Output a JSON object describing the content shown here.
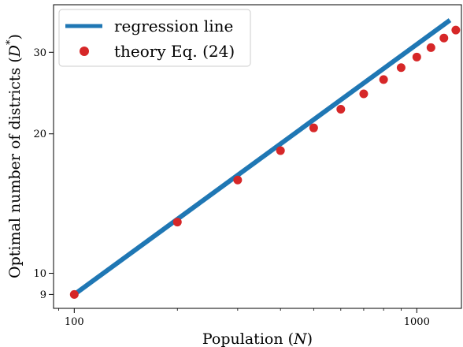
{
  "chart_data": {
    "type": "line",
    "xscale": "log",
    "yscale": "log",
    "xlabel": "Population (N)",
    "xlabel_parts": [
      "Population (",
      "N",
      ")"
    ],
    "ylabel": "Optimal number of districts (D*)",
    "ylabel_parts": [
      "Optimal number of districts (",
      "D",
      "*",
      ")"
    ],
    "xlim": [
      87,
      1350
    ],
    "ylim": [
      8.4,
      38
    ],
    "xticks": [
      {
        "value": 100,
        "label": "100"
      },
      {
        "value": 1000,
        "label": "1000"
      }
    ],
    "yticks": [
      {
        "value": 9,
        "label": "9"
      },
      {
        "value": 10,
        "label": "10"
      },
      {
        "value": 20,
        "label": "20"
      },
      {
        "value": 30,
        "label": "30"
      }
    ],
    "grid": false,
    "legend_position": "top-left",
    "series": [
      {
        "name": "regression line",
        "kind": "line",
        "color": "#1f77b4",
        "x": [
          100,
          1250
        ],
        "y": [
          9.0,
          35.2
        ]
      },
      {
        "name": "theory Eq. (24)",
        "kind": "scatter",
        "color": "#d62728",
        "x": [
          100,
          200,
          300,
          400,
          500,
          600,
          700,
          800,
          900,
          1000,
          1100,
          1200,
          1300
        ],
        "y": [
          9.0,
          12.9,
          15.9,
          18.4,
          20.6,
          22.6,
          24.4,
          26.2,
          27.8,
          29.3,
          30.7,
          32.2,
          33.5
        ]
      }
    ]
  }
}
